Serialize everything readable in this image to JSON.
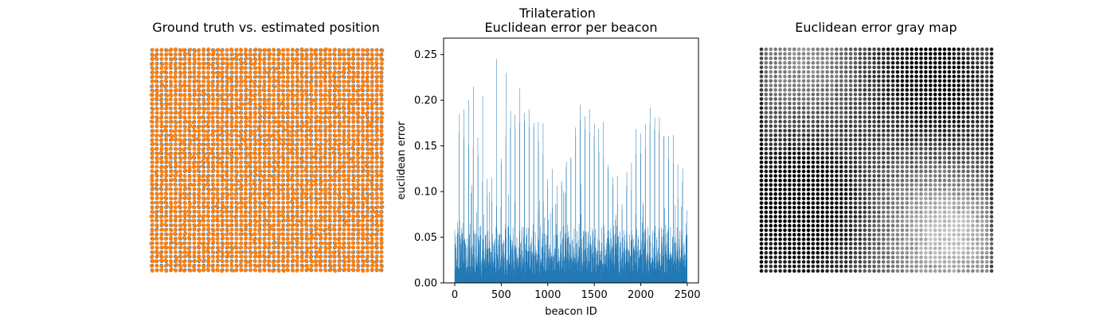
{
  "figure": {
    "suptitle": "Trilateration"
  },
  "chart_data": [
    {
      "type": "scatter",
      "title": "Ground truth vs. estimated position",
      "grid_size": 50,
      "axes_visible": false,
      "series": [
        {
          "role": "ground-truth",
          "color": "#5b7f95"
        },
        {
          "role": "estimated",
          "color": "#ff7f0e"
        }
      ]
    },
    {
      "type": "bar",
      "title": "Euclidean error per beacon",
      "xlabel": "beacon ID",
      "ylabel": "euclidean error",
      "xlim": [
        -120,
        2620
      ],
      "ylim": [
        0,
        0.268
      ],
      "xticks": [
        0,
        500,
        1000,
        1500,
        2000,
        2500
      ],
      "yticks": [
        0.0,
        0.05,
        0.1,
        0.15,
        0.2,
        0.25
      ],
      "xtick_labels": [
        "0",
        "500",
        "1000",
        "1500",
        "2000",
        "2500"
      ],
      "ytick_labels": [
        "0.00",
        "0.05",
        "0.10",
        "0.15",
        "0.20",
        "0.25"
      ],
      "bar_count": 2500,
      "color": "#1f77b4",
      "notable_peaks": [
        {
          "x": 0,
          "y": 0.058
        },
        {
          "x": 50,
          "y": 0.185
        },
        {
          "x": 100,
          "y": 0.19
        },
        {
          "x": 150,
          "y": 0.2
        },
        {
          "x": 200,
          "y": 0.215
        },
        {
          "x": 300,
          "y": 0.205
        },
        {
          "x": 450,
          "y": 0.245
        },
        {
          "x": 550,
          "y": 0.23
        },
        {
          "x": 700,
          "y": 0.213
        },
        {
          "x": 950,
          "y": 0.175
        },
        {
          "x": 1450,
          "y": 0.165
        },
        {
          "x": 2450,
          "y": 0.125
        },
        {
          "x": 2500,
          "y": 0.14
        }
      ]
    },
    {
      "type": "heatmap",
      "title": "Euclidean error gray map",
      "grid_size": 50,
      "colormap": "gray",
      "axes_visible": false,
      "note_low": "dark",
      "note_high": "light"
    }
  ]
}
